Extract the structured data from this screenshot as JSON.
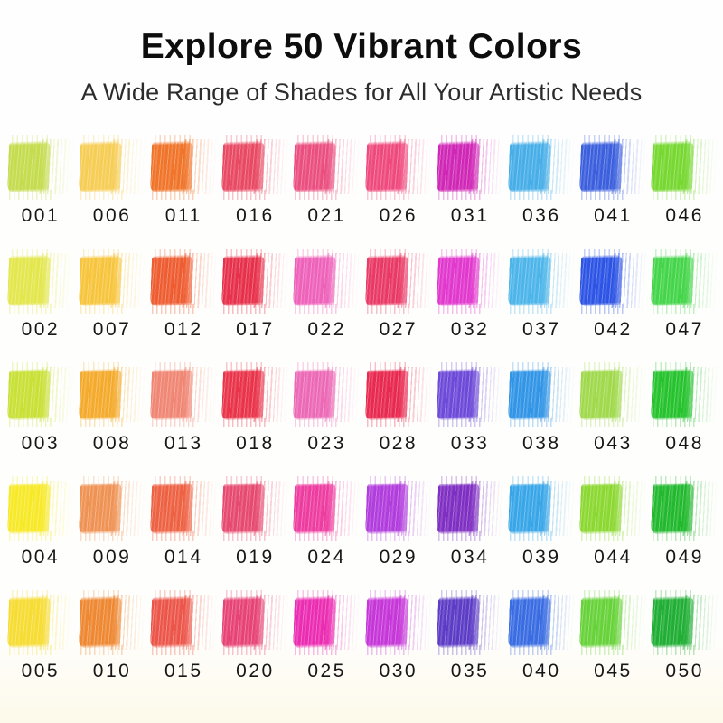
{
  "header": {
    "title": "Explore 50 Vibrant Colors",
    "subtitle": "A Wide Range of Shades for All Your Artistic Needs"
  },
  "palette": {
    "rows": 5,
    "columns": 10,
    "swatches": [
      {
        "label": "001",
        "color": "#c4dc4e"
      },
      {
        "label": "006",
        "color": "#f6cd55"
      },
      {
        "label": "011",
        "color": "#f0742a"
      },
      {
        "label": "016",
        "color": "#e84a63"
      },
      {
        "label": "021",
        "color": "#ea4f80"
      },
      {
        "label": "026",
        "color": "#ef4a7e"
      },
      {
        "label": "031",
        "color": "#d028b6"
      },
      {
        "label": "036",
        "color": "#47aee8"
      },
      {
        "label": "041",
        "color": "#3c60dd"
      },
      {
        "label": "046",
        "color": "#77d831"
      },
      {
        "label": "002",
        "color": "#e3e64c"
      },
      {
        "label": "007",
        "color": "#f7c53d"
      },
      {
        "label": "012",
        "color": "#ee5c31"
      },
      {
        "label": "017",
        "color": "#e7314b"
      },
      {
        "label": "022",
        "color": "#ee62ba"
      },
      {
        "label": "027",
        "color": "#e93a65"
      },
      {
        "label": "032",
        "color": "#e138cd"
      },
      {
        "label": "037",
        "color": "#4db5e9"
      },
      {
        "label": "042",
        "color": "#2d54e4"
      },
      {
        "label": "047",
        "color": "#45d54a"
      },
      {
        "label": "003",
        "color": "#c9e036"
      },
      {
        "label": "008",
        "color": "#f4ab2d"
      },
      {
        "label": "013",
        "color": "#f08674"
      },
      {
        "label": "018",
        "color": "#e9344a"
      },
      {
        "label": "023",
        "color": "#ec69b6"
      },
      {
        "label": "028",
        "color": "#e82950"
      },
      {
        "label": "033",
        "color": "#6d4ad8"
      },
      {
        "label": "038",
        "color": "#3295e6"
      },
      {
        "label": "043",
        "color": "#a0d94c"
      },
      {
        "label": "048",
        "color": "#27c32f"
      },
      {
        "label": "004",
        "color": "#f7e928"
      },
      {
        "label": "009",
        "color": "#ef9355"
      },
      {
        "label": "014",
        "color": "#ee6244"
      },
      {
        "label": "019",
        "color": "#e64a70"
      },
      {
        "label": "024",
        "color": "#ee3da0"
      },
      {
        "label": "029",
        "color": "#b13ddd"
      },
      {
        "label": "034",
        "color": "#7f2fc2"
      },
      {
        "label": "039",
        "color": "#39a6e8"
      },
      {
        "label": "044",
        "color": "#8cd832"
      },
      {
        "label": "049",
        "color": "#23b92f"
      },
      {
        "label": "005",
        "color": "#f6dc33"
      },
      {
        "label": "010",
        "color": "#ee8833"
      },
      {
        "label": "015",
        "color": "#ec564a"
      },
      {
        "label": "020",
        "color": "#e64476"
      },
      {
        "label": "025",
        "color": "#eb2db2"
      },
      {
        "label": "030",
        "color": "#c637d8"
      },
      {
        "label": "035",
        "color": "#5d3dc6"
      },
      {
        "label": "040",
        "color": "#3a6ce2"
      },
      {
        "label": "045",
        "color": "#68d23a"
      },
      {
        "label": "050",
        "color": "#21ae35"
      }
    ]
  }
}
